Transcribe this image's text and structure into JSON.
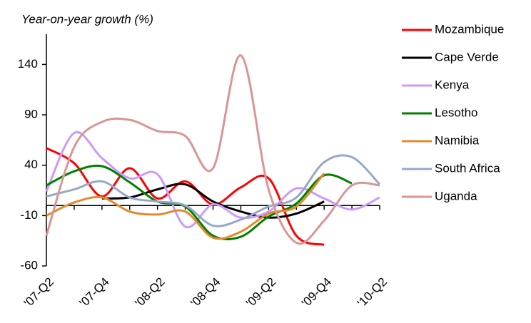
{
  "chart_data": {
    "type": "line",
    "title": "Year-on-year growth (%)",
    "categories": [
      "'07-Q2",
      null,
      "'07-Q4",
      null,
      "'08-Q2",
      null,
      "'08-Q4",
      null,
      "'09-Q2",
      null,
      "'09-Q4",
      null,
      "'10-Q2"
    ],
    "ylim": [
      -60,
      170
    ],
    "yticks": [
      -60,
      -10,
      40,
      90,
      140
    ],
    "smooth": true,
    "series": [
      {
        "name": "Mozambique",
        "color": "#ff0000",
        "values": [
          57,
          42,
          9,
          37,
          7,
          24,
          1,
          18,
          27,
          -30,
          -39,
          null,
          null
        ]
      },
      {
        "name": "Cape Verde",
        "color": "#000000",
        "values": [
          null,
          null,
          7,
          8,
          16,
          21,
          4,
          -6,
          -12,
          -8,
          4,
          null,
          null
        ]
      },
      {
        "name": "Kenya",
        "color": "#cc99ff",
        "values": [
          14,
          72,
          47,
          27,
          31,
          -21,
          1,
          -12,
          -6,
          17,
          7,
          -4,
          8
        ]
      },
      {
        "name": "Lesotho",
        "color": "#008000",
        "values": [
          20,
          34,
          39,
          23,
          4,
          -1,
          -30,
          -31,
          -11,
          2,
          30,
          22,
          null
        ]
      },
      {
        "name": "Namibia",
        "color": "#e3892b",
        "values": [
          -10,
          3,
          8,
          -6,
          -9,
          -6,
          -32,
          -26,
          -8,
          -1,
          32,
          null,
          null
        ]
      },
      {
        "name": "South Africa",
        "color": "#95a8c8",
        "values": [
          9,
          16,
          24,
          8,
          4,
          0,
          -20,
          -14,
          -1,
          8,
          43,
          48,
          21
        ]
      },
      {
        "name": "Uganda",
        "color": "#d99594",
        "values": [
          -30,
          58,
          83,
          85,
          74,
          69,
          37,
          149,
          16,
          -37,
          -15,
          20,
          20
        ]
      }
    ]
  }
}
